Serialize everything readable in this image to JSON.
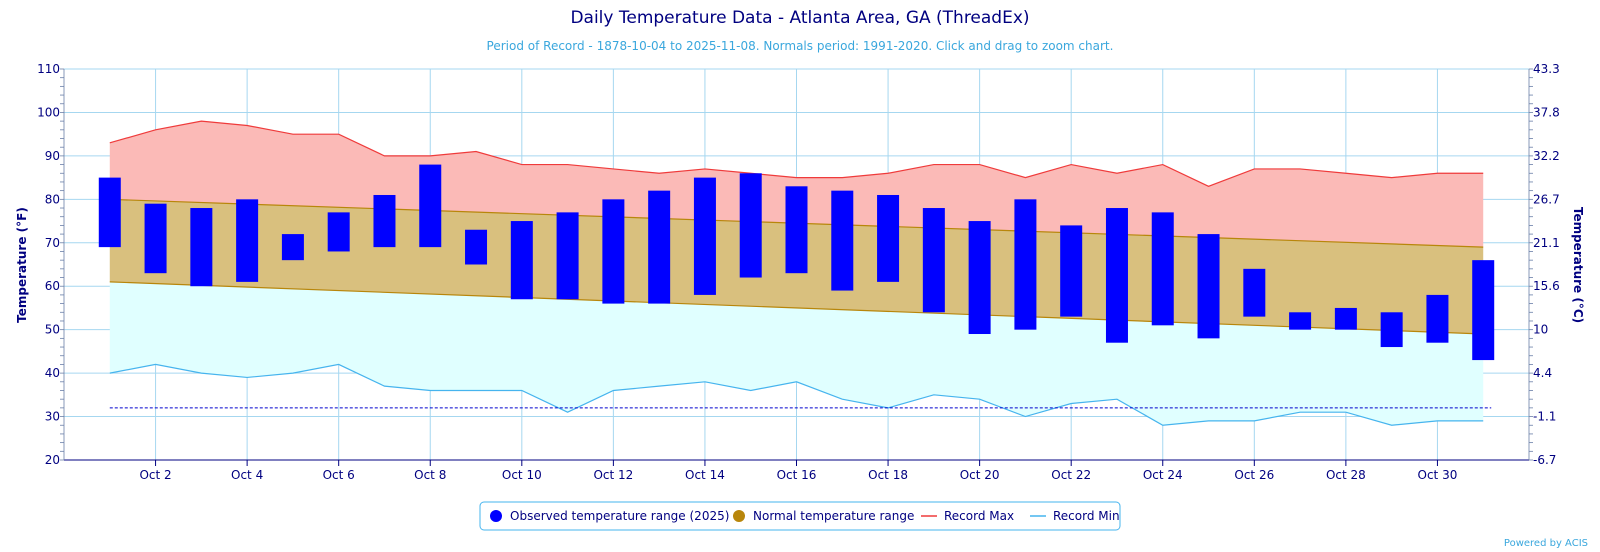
{
  "title": "Daily Temperature Data - Atlanta Area, GA (ThreadEx)",
  "subtitle": "Period of Record - 1878-10-04 to 2025-11-08. Normals period: 1991-2020. Click and drag to zoom chart.",
  "credit": "Powered by ACIS",
  "colors": {
    "observed": "#0000ff",
    "normal_fill": "#d9c07e",
    "normal_line": "#b8860b",
    "record_max_fill": "#fbbab7",
    "record_max_line": "#ef3b3b",
    "record_min_fill": "#e0ffff",
    "record_min_line": "#46b4ee",
    "freezing_line": "#0000cd",
    "grid": "#a6d7f0",
    "axis": "#000080"
  },
  "chart_data": {
    "type": "bar",
    "xlabel": "",
    "ylabel": "Temperature (°F)",
    "y2label": "Temperature (°C)",
    "ylim": [
      20,
      110
    ],
    "yticks": [
      20,
      30,
      40,
      50,
      60,
      70,
      80,
      90,
      100,
      110
    ],
    "y2ticks": [
      "-6.7",
      "-1.1",
      "4.4",
      "10",
      "15.6",
      "21.1",
      "26.7",
      "32.2",
      "37.8",
      "43.3"
    ],
    "x_tick_labels": [
      "Oct 2",
      "Oct 4",
      "Oct 6",
      "Oct 8",
      "Oct 10",
      "Oct 12",
      "Oct 14",
      "Oct 16",
      "Oct 18",
      "Oct 20",
      "Oct 22",
      "Oct 24",
      "Oct 26",
      "Oct 28",
      "Oct 30"
    ],
    "days": [
      1,
      2,
      3,
      4,
      5,
      6,
      7,
      8,
      9,
      10,
      11,
      12,
      13,
      14,
      15,
      16,
      17,
      18,
      19,
      20,
      21,
      22,
      23,
      24,
      25,
      26,
      27,
      28,
      29,
      30,
      31
    ],
    "freezing_line": 32,
    "grid": true,
    "legend_position": "bottom-center",
    "series": [
      {
        "name": "Observed temperature range (2025)",
        "low": [
          69,
          63,
          60,
          61,
          66,
          68,
          69,
          69,
          65,
          57,
          57,
          56,
          56,
          58,
          62,
          63,
          59,
          61,
          54,
          49,
          50,
          53,
          47,
          51,
          48,
          53,
          50,
          50,
          46,
          47,
          43
        ],
        "high": [
          85,
          79,
          78,
          80,
          72,
          77,
          81,
          88,
          73,
          75,
          77,
          80,
          82,
          85,
          86,
          83,
          82,
          81,
          78,
          75,
          80,
          74,
          78,
          77,
          72,
          64,
          54,
          55,
          54,
          58,
          66
        ]
      },
      {
        "name": "Normal temperature range",
        "low": [
          61,
          49
        ],
        "high": [
          80,
          69
        ]
      },
      {
        "name": "Record Max",
        "values": [
          93,
          96,
          98,
          97,
          95,
          95,
          90,
          90,
          91,
          88,
          88,
          87,
          86,
          87,
          86,
          85,
          85,
          86,
          88,
          88,
          85,
          88,
          86,
          88,
          83,
          87,
          87,
          86,
          85,
          86,
          86
        ]
      },
      {
        "name": "Record Min",
        "values": [
          40,
          42,
          40,
          39,
          40,
          42,
          37,
          36,
          36,
          36,
          31,
          36,
          37,
          38,
          36,
          38,
          34,
          32,
          35,
          34,
          30,
          33,
          34,
          28,
          29,
          29,
          31,
          31,
          28,
          29,
          29
        ]
      }
    ]
  }
}
